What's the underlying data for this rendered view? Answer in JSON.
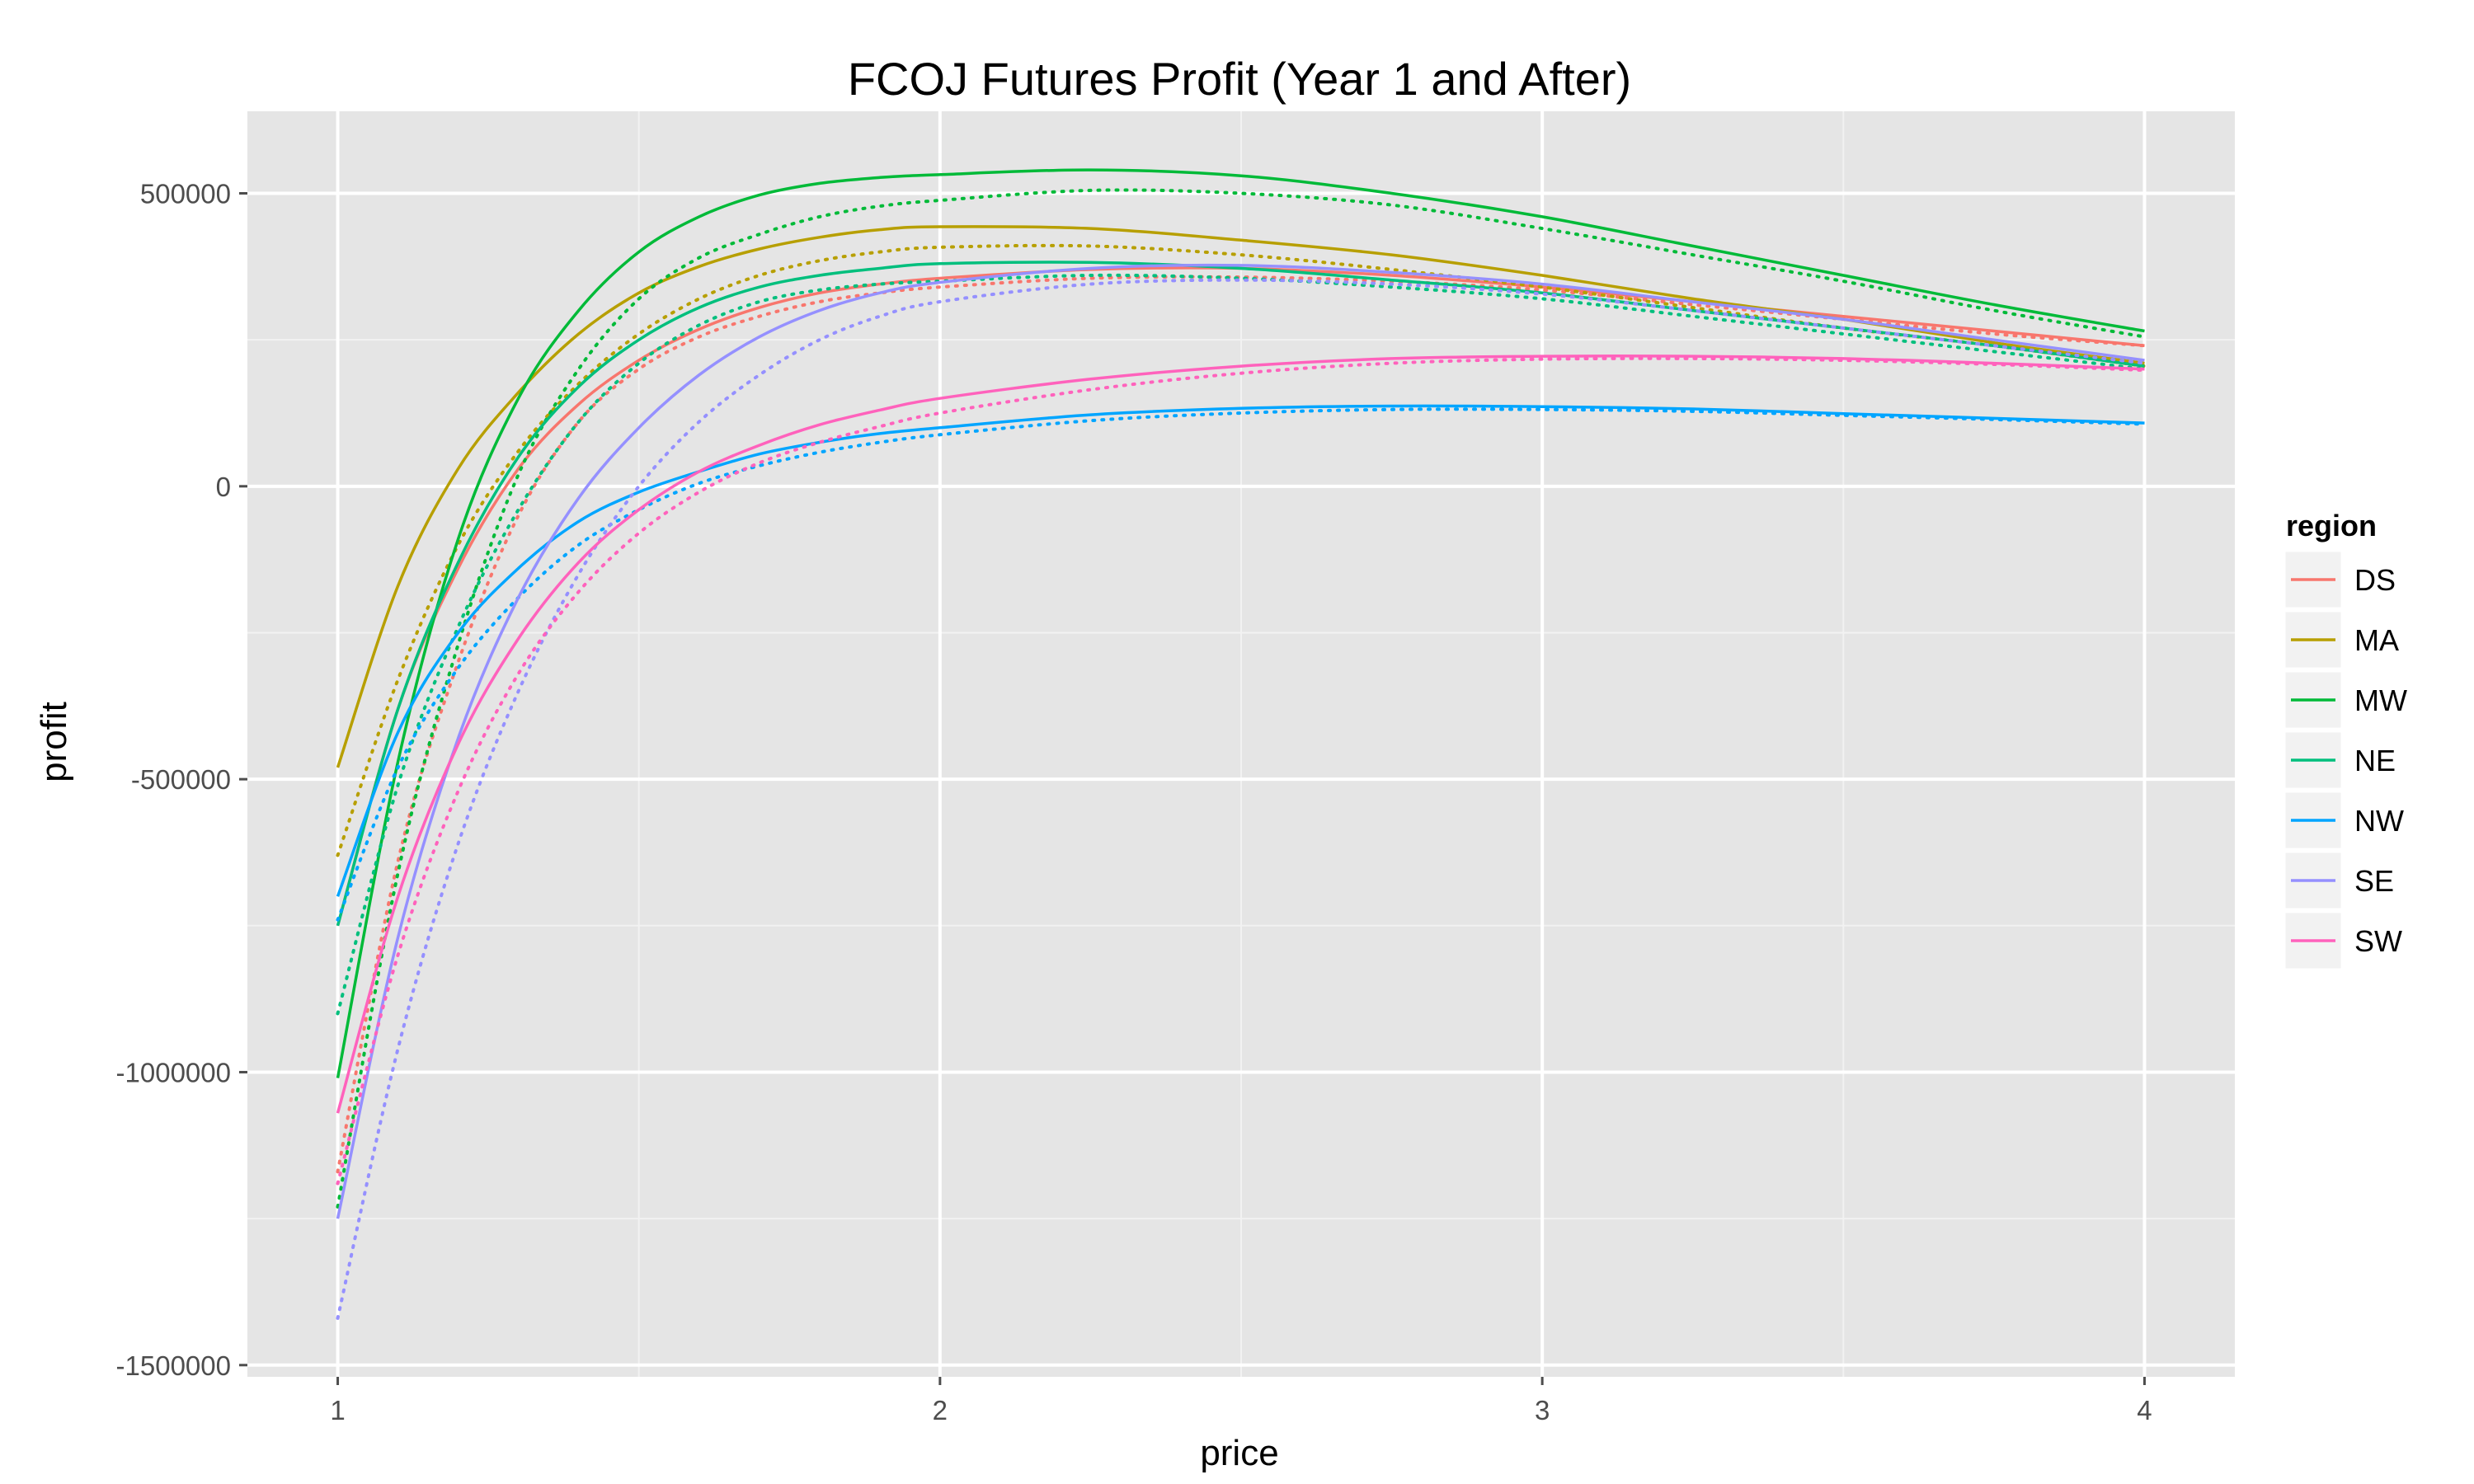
{
  "chart_data": {
    "type": "line",
    "title": "FCOJ Futures Profit (Year 1 and After)",
    "xlabel": "price",
    "ylabel": "profit",
    "xlim": [
      0.85,
      4.15
    ],
    "ylim": [
      -1520000,
      640000
    ],
    "x_ticks": [
      1,
      2,
      3,
      4
    ],
    "x_tick_labels": [
      "1",
      "2",
      "3",
      "4"
    ],
    "x_minor_ticks": [
      1.5,
      2.5,
      3.5
    ],
    "y_ticks": [
      -1500000,
      -1000000,
      -500000,
      0,
      500000
    ],
    "y_tick_labels": [
      "-1500000",
      "-1000000",
      "-500000",
      "0",
      "500000"
    ],
    "y_minor_ticks": [
      -1250000,
      -750000,
      -250000,
      250000
    ],
    "grid": true,
    "legend": {
      "title": "region",
      "position": "right"
    },
    "line_styles": {
      "solid": "Year 1",
      "dotted": "After"
    },
    "x": [
      1.0,
      1.1,
      1.2,
      1.3,
      1.4,
      1.5,
      1.6,
      1.7,
      1.8,
      1.9,
      2.0,
      2.25,
      2.5,
      2.75,
      3.0,
      3.25,
      3.5,
      3.75,
      4.0
    ],
    "series": [
      {
        "name": "DS",
        "color": "#F8766D",
        "solid": [
          -750000,
          -380000,
          -140000,
          30000,
          140000,
          215000,
          268000,
          305000,
          330000,
          345000,
          355000,
          370000,
          372000,
          360000,
          340000,
          315000,
          290000,
          265000,
          240000
        ],
        "dotted": [
          -1170000,
          -640000,
          -300000,
          -50000,
          110000,
          200000,
          255000,
          290000,
          315000,
          330000,
          340000,
          355000,
          357000,
          350000,
          335000,
          310000,
          285000,
          260000,
          240000
        ]
      },
      {
        "name": "MA",
        "color": "#B79F00",
        "solid": [
          -480000,
          -170000,
          30000,
          160000,
          260000,
          330000,
          375000,
          405000,
          425000,
          438000,
          443000,
          440000,
          420000,
          395000,
          360000,
          320000,
          285000,
          245000,
          210000
        ],
        "dotted": [
          -630000,
          -330000,
          -100000,
          60000,
          175000,
          260000,
          320000,
          360000,
          385000,
          400000,
          408000,
          410000,
          395000,
          370000,
          340000,
          305000,
          270000,
          240000,
          205000
        ]
      },
      {
        "name": "MW",
        "color": "#00BA38",
        "solid": [
          -1010000,
          -470000,
          -90000,
          150000,
          300000,
          400000,
          460000,
          497000,
          517000,
          527000,
          532000,
          540000,
          530000,
          500000,
          460000,
          410000,
          360000,
          310000,
          265000
        ],
        "dotted": [
          -1230000,
          -660000,
          -270000,
          20000,
          200000,
          320000,
          390000,
          430000,
          460000,
          478000,
          488000,
          505000,
          500000,
          480000,
          440000,
          395000,
          350000,
          300000,
          255000
        ]
      },
      {
        "name": "NE",
        "color": "#00BF7D",
        "solid": [
          -750000,
          -380000,
          -130000,
          50000,
          170000,
          250000,
          305000,
          340000,
          360000,
          372000,
          380000,
          382000,
          372000,
          352000,
          330000,
          300000,
          270000,
          240000,
          205000
        ],
        "dotted": [
          -900000,
          -510000,
          -240000,
          -40000,
          110000,
          210000,
          275000,
          315000,
          335000,
          345000,
          350000,
          360000,
          355000,
          340000,
          320000,
          290000,
          260000,
          230000,
          200000
        ]
      },
      {
        "name": "NW",
        "color": "#00A5FF",
        "solid": [
          -700000,
          -420000,
          -250000,
          -140000,
          -60000,
          -10000,
          25000,
          55000,
          75000,
          90000,
          100000,
          122000,
          133000,
          137000,
          136000,
          132000,
          124000,
          116000,
          108000
        ],
        "dotted": [
          -740000,
          -480000,
          -310000,
          -190000,
          -100000,
          -40000,
          5000,
          35000,
          58000,
          75000,
          88000,
          112000,
          125000,
          131000,
          131000,
          128000,
          121000,
          114000,
          106000
        ]
      },
      {
        "name": "SE",
        "color": "#9590FF",
        "solid": [
          -1250000,
          -770000,
          -430000,
          -190000,
          -20000,
          100000,
          190000,
          255000,
          300000,
          330000,
          348000,
          372000,
          377000,
          365000,
          345000,
          315000,
          285000,
          250000,
          215000
        ],
        "dotted": [
          -1420000,
          -960000,
          -610000,
          -350000,
          -150000,
          0,
          110000,
          190000,
          250000,
          290000,
          315000,
          345000,
          352000,
          345000,
          328000,
          300000,
          270000,
          240000,
          210000
        ]
      },
      {
        "name": "SW",
        "color": "#FF62BC",
        "solid": [
          -1070000,
          -700000,
          -440000,
          -260000,
          -130000,
          -40000,
          25000,
          70000,
          105000,
          130000,
          150000,
          183000,
          205000,
          218000,
          222000,
          222000,
          218000,
          210000,
          200000
        ],
        "dotted": [
          -1190000,
          -800000,
          -520000,
          -320000,
          -180000,
          -80000,
          -10000,
          40000,
          75000,
          102000,
          125000,
          165000,
          193000,
          210000,
          217000,
          218000,
          215000,
          208000,
          198000
        ]
      }
    ]
  }
}
